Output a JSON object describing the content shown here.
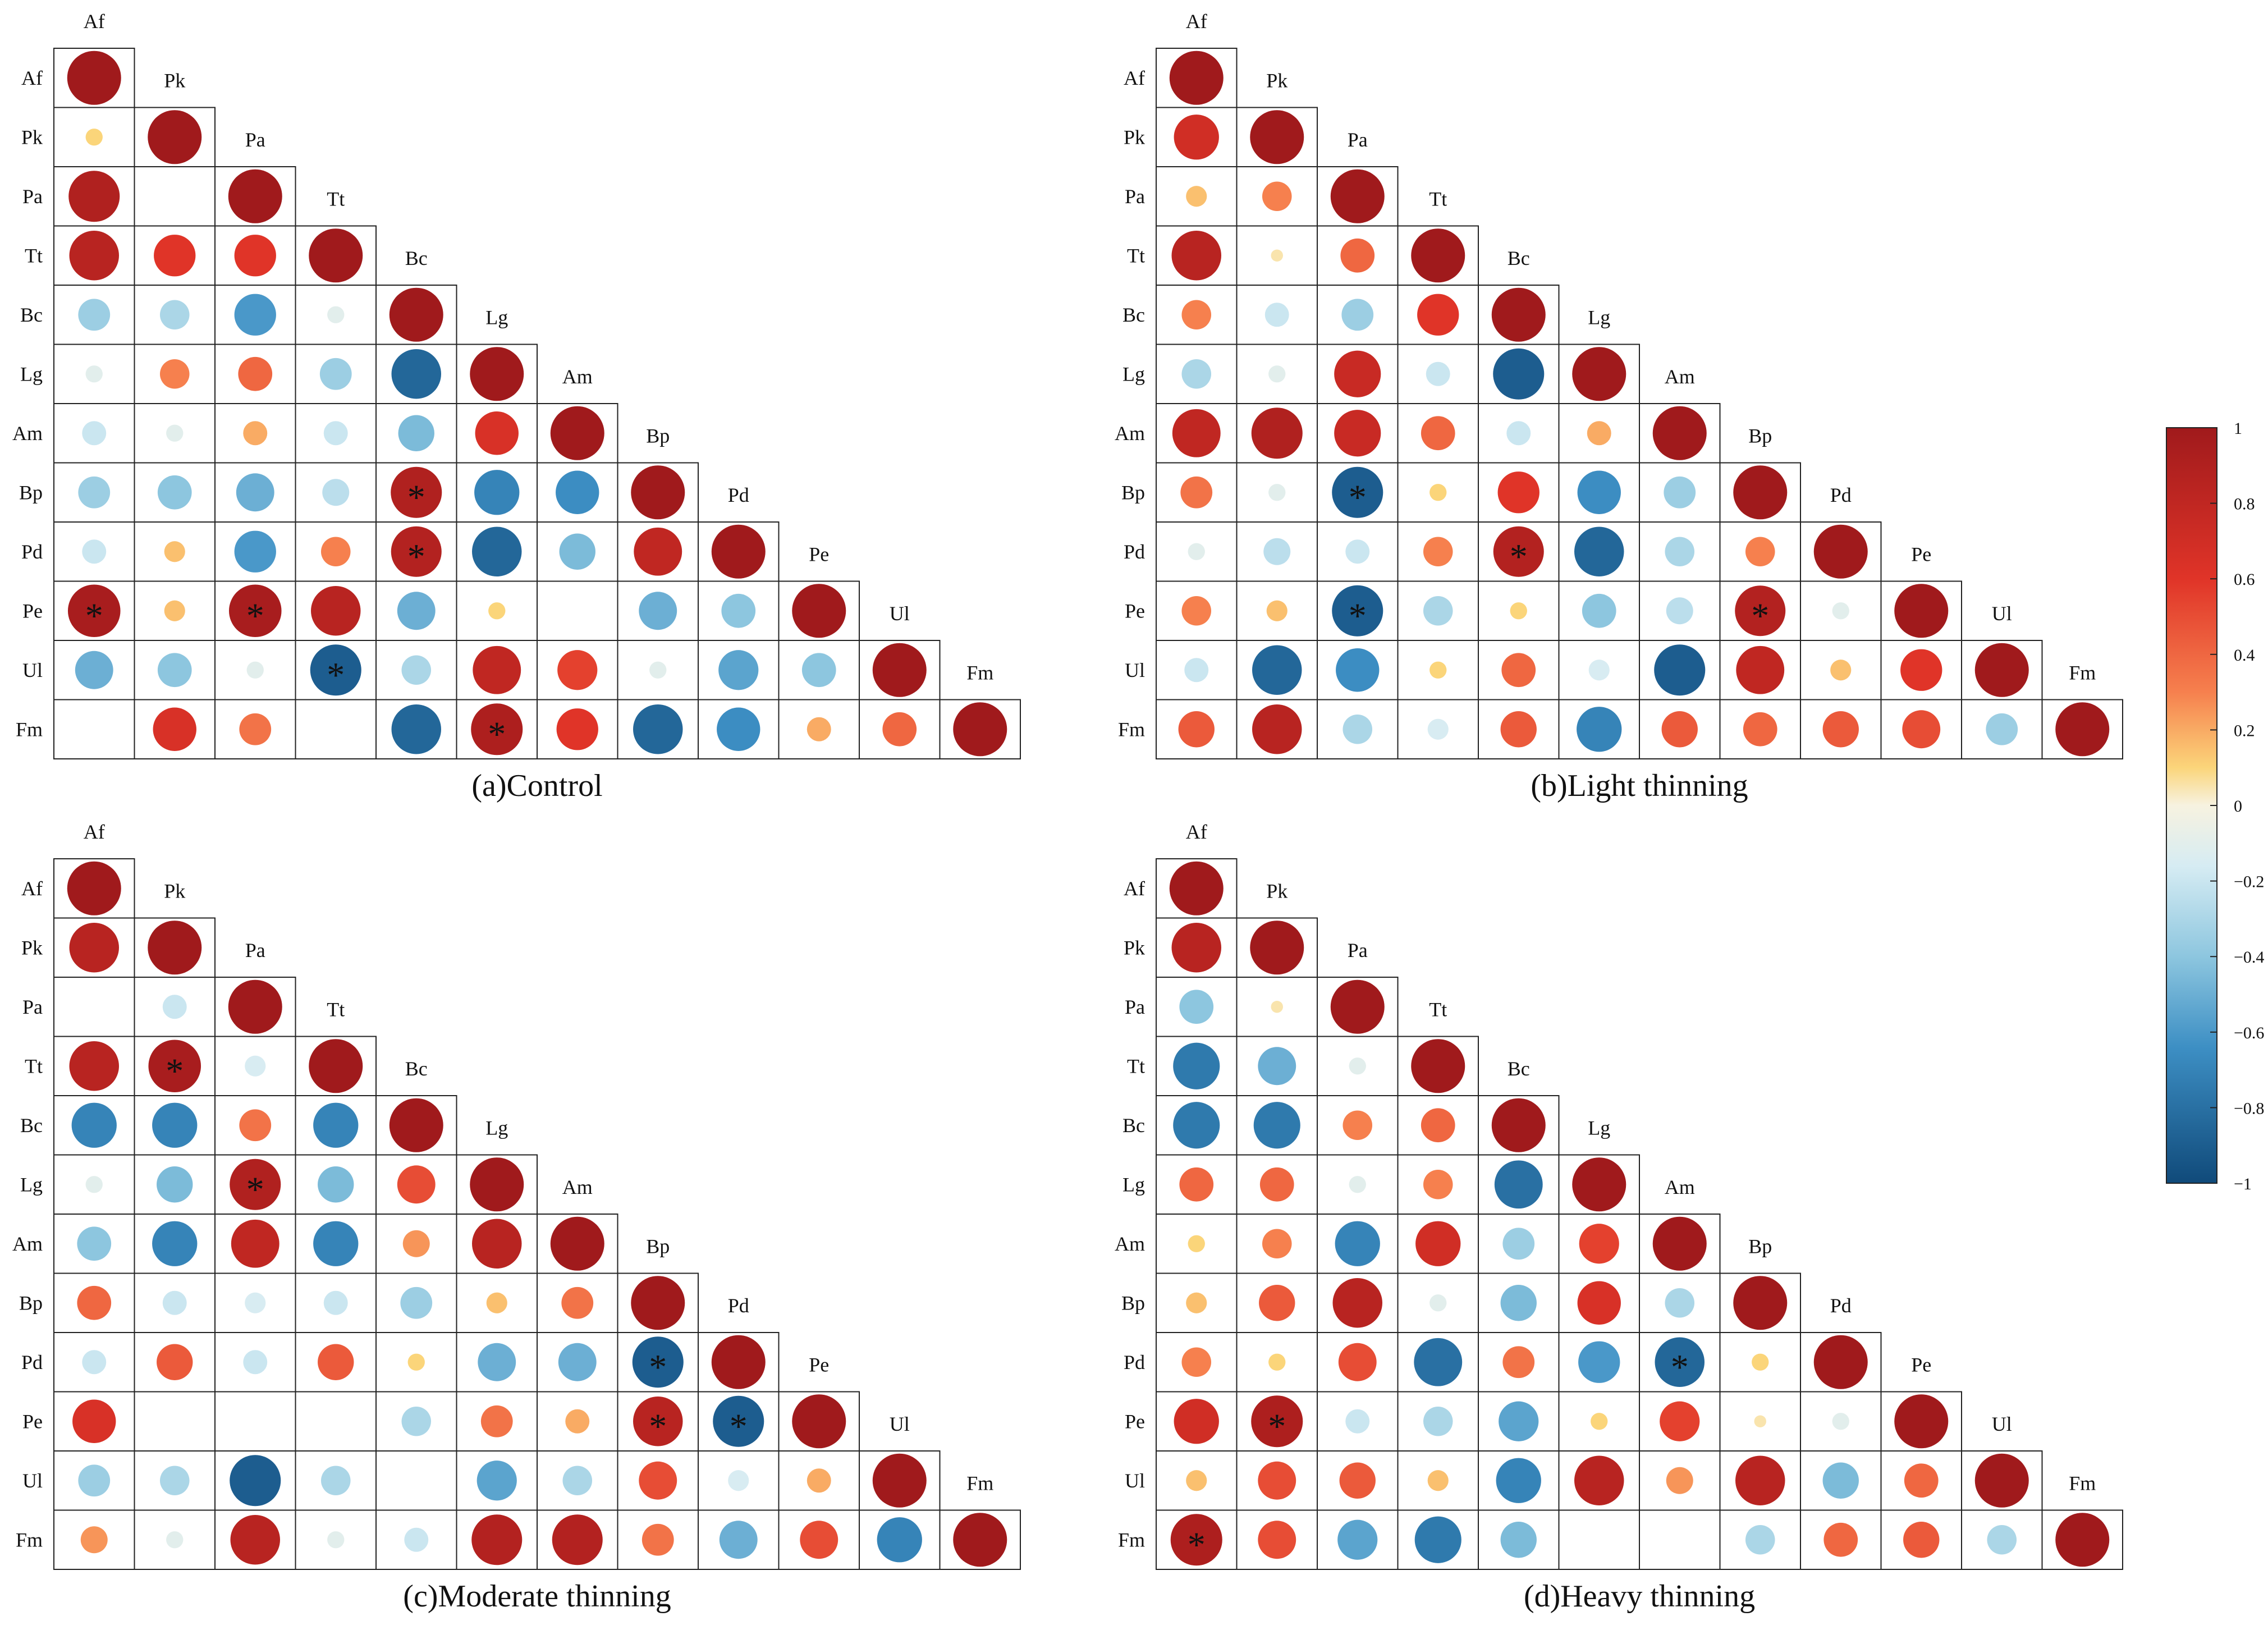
{
  "chart_data": {
    "type": "correlation-matrix",
    "variables": [
      "Af",
      "Pk",
      "Pa",
      "Tt",
      "Bc",
      "Lg",
      "Am",
      "Bp",
      "Pd",
      "Pe",
      "Ul",
      "Fm"
    ],
    "range": [
      -1,
      1
    ],
    "colorbar": {
      "ticks": [
        1,
        0.8,
        0.6,
        0.4,
        0.2,
        0,
        -0.2,
        -0.4,
        -0.6,
        -0.8,
        -1
      ],
      "tick_labels": [
        "1",
        "0.8",
        "0.6",
        "0.4",
        "0.2",
        "0",
        "−0.2",
        "−0.4",
        "−0.6",
        "−0.8",
        "−1"
      ]
    },
    "significance_marker": "*",
    "panels": [
      {
        "title": "(a)Control",
        "matrix": [
          [
            1
          ],
          [
            0.1,
            1
          ],
          [
            0.9,
            0,
            1
          ],
          [
            0.85,
            0.6,
            0.6,
            1
          ],
          [
            -0.35,
            -0.3,
            -0.6,
            -0.1,
            1
          ],
          [
            -0.1,
            0.3,
            0.4,
            -0.35,
            -0.85,
            1
          ],
          [
            -0.2,
            -0.1,
            0.2,
            -0.2,
            -0.45,
            0.65,
            1
          ],
          [
            -0.35,
            -0.4,
            -0.5,
            -0.25,
            0.9,
            -0.7,
            -0.65,
            1
          ],
          [
            -0.2,
            0.15,
            -0.6,
            0.3,
            0.88,
            -0.85,
            -0.45,
            0.8,
            1
          ],
          [
            0.95,
            0.15,
            0.95,
            0.85,
            -0.5,
            0.1,
            0,
            -0.5,
            -0.4,
            1
          ],
          [
            -0.5,
            -0.4,
            -0.1,
            -0.9,
            -0.3,
            0.8,
            0.55,
            -0.1,
            -0.55,
            -0.4,
            1
          ],
          [
            0,
            0.65,
            0.35,
            0,
            -0.85,
            0.92,
            0.6,
            -0.85,
            -0.65,
            0.2,
            0.4,
            1
          ]
        ],
        "significant": [
          [
            9,
            0
          ],
          [
            9,
            2
          ],
          [
            10,
            3
          ],
          [
            7,
            4
          ],
          [
            8,
            4
          ],
          [
            11,
            5
          ]
        ]
      },
      {
        "title": "(b)Light thinning",
        "matrix": [
          [
            1
          ],
          [
            0.7,
            1
          ],
          [
            0.15,
            0.3,
            1
          ],
          [
            0.85,
            0.05,
            0.4,
            1
          ],
          [
            0.3,
            -0.2,
            -0.35,
            0.6,
            1
          ],
          [
            -0.3,
            -0.1,
            0.75,
            -0.2,
            -0.9,
            1
          ],
          [
            0.8,
            0.9,
            0.75,
            0.4,
            -0.2,
            0.2,
            1
          ],
          [
            0.35,
            -0.1,
            -0.9,
            0.1,
            0.6,
            -0.65,
            -0.35,
            1
          ],
          [
            -0.1,
            -0.25,
            -0.2,
            0.3,
            0.88,
            -0.85,
            -0.3,
            0.3,
            1
          ],
          [
            0.3,
            0.15,
            -0.9,
            -0.3,
            0.1,
            -0.4,
            -0.25,
            0.88,
            -0.1,
            1
          ],
          [
            -0.2,
            -0.85,
            -0.65,
            0.1,
            0.4,
            -0.15,
            -0.9,
            0.8,
            0.15,
            0.6,
            1
          ],
          [
            0.45,
            0.85,
            -0.3,
            -0.15,
            0.45,
            -0.7,
            0.45,
            0.4,
            0.45,
            0.5,
            -0.35,
            1
          ]
        ],
        "significant": [
          [
            7,
            2
          ],
          [
            9,
            2
          ],
          [
            8,
            4
          ],
          [
            9,
            7
          ]
        ]
      },
      {
        "title": "(c)Moderate thinning",
        "matrix": [
          [
            1
          ],
          [
            0.85,
            1
          ],
          [
            0,
            -0.2,
            1
          ],
          [
            0.85,
            0.95,
            -0.15,
            1
          ],
          [
            -0.7,
            -0.7,
            0.35,
            -0.7,
            1
          ],
          [
            -0.1,
            -0.45,
            0.9,
            -0.45,
            0.5,
            1
          ],
          [
            -0.4,
            -0.7,
            0.8,
            -0.7,
            0.25,
            0.85,
            1
          ],
          [
            0.4,
            -0.2,
            -0.15,
            -0.2,
            -0.35,
            0.15,
            0.35,
            1
          ],
          [
            -0.2,
            0.45,
            -0.2,
            0.45,
            0.1,
            -0.5,
            -0.5,
            -0.9,
            1
          ],
          [
            0.65,
            0,
            0,
            0,
            -0.3,
            0.35,
            0.2,
            0.85,
            -0.9,
            1
          ],
          [
            -0.35,
            -0.3,
            -0.9,
            -0.3,
            0,
            -0.55,
            -0.3,
            0.5,
            -0.15,
            0.2,
            1
          ],
          [
            0.25,
            -0.1,
            0.85,
            -0.1,
            -0.2,
            0.88,
            0.88,
            0.35,
            -0.5,
            0.5,
            -0.7,
            1
          ]
        ],
        "significant": [
          [
            3,
            1
          ],
          [
            5,
            2
          ],
          [
            8,
            7
          ],
          [
            9,
            7
          ],
          [
            9,
            8
          ]
        ]
      },
      {
        "title": "(d)Heavy thinning",
        "matrix": [
          [
            1
          ],
          [
            0.85,
            1
          ],
          [
            -0.4,
            0.05,
            1
          ],
          [
            -0.75,
            -0.5,
            -0.1,
            1
          ],
          [
            -0.75,
            -0.75,
            0.3,
            0.4,
            1
          ],
          [
            0.4,
            0.4,
            -0.1,
            0.3,
            -0.8,
            1
          ],
          [
            0.1,
            0.3,
            -0.7,
            0.7,
            -0.35,
            0.55,
            1
          ],
          [
            0.15,
            0.45,
            0.85,
            -0.1,
            -0.45,
            0.65,
            -0.3,
            1
          ],
          [
            0.3,
            0.1,
            0.5,
            -0.8,
            0.35,
            -0.6,
            -0.85,
            0.1,
            1
          ],
          [
            0.7,
            0.92,
            -0.2,
            -0.3,
            -0.55,
            0.1,
            0.55,
            0.05,
            -0.1,
            1
          ],
          [
            0.15,
            0.5,
            0.45,
            0.15,
            -0.7,
            0.85,
            0.25,
            0.85,
            -0.45,
            0.4,
            1
          ],
          [
            0.92,
            0.5,
            -0.55,
            -0.75,
            -0.45,
            0,
            0,
            -0.3,
            0.4,
            0.45,
            -0.3,
            1
          ]
        ],
        "significant": [
          [
            8,
            6
          ],
          [
            9,
            1
          ],
          [
            11,
            0
          ]
        ]
      }
    ]
  }
}
